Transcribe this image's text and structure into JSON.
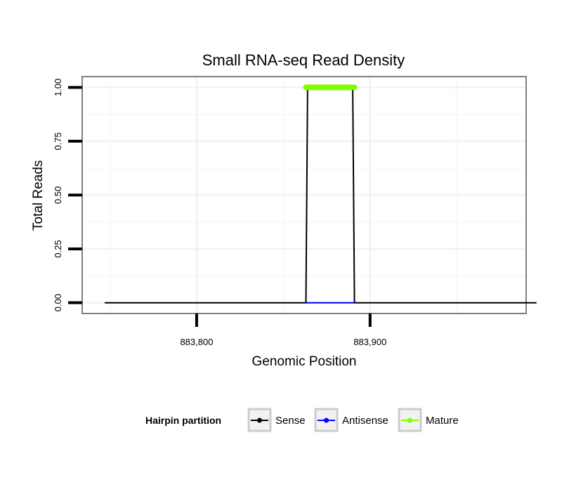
{
  "chart_data": {
    "type": "line",
    "title": "Small RNA-seq Read Density",
    "xlabel": "Genomic Position",
    "ylabel": "Total Reads",
    "xlim": [
      883734,
      883990
    ],
    "ylim": [
      -0.05,
      1.05
    ],
    "x_ticks": [
      883800,
      883900
    ],
    "x_tick_labels": [
      "883,800",
      "883,900"
    ],
    "y_ticks": [
      0,
      0.25,
      0.5,
      0.75,
      1.0
    ],
    "y_tick_labels": [
      "0.00",
      "0.25",
      "0.50",
      "0.75",
      "1.00"
    ],
    "grid": true,
    "legend_position": "bottom",
    "legend_title": "Hairpin partition",
    "series": [
      {
        "name": "Sense",
        "color": "#000000",
        "x": [
          883747,
          883863,
          883864,
          883890,
          883891,
          883996
        ],
        "y": [
          0,
          0,
          1,
          1,
          0,
          0
        ]
      },
      {
        "name": "Antisense",
        "color": "#0000ff",
        "x": [
          883863,
          883891
        ],
        "y": [
          0,
          0
        ]
      },
      {
        "name": "Mature",
        "color": "#7fff00",
        "x": [
          883863,
          883891
        ],
        "y": [
          1,
          1
        ]
      }
    ]
  }
}
